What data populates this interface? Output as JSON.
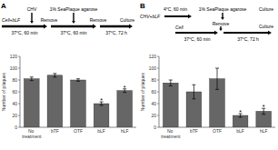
{
  "chart_data": [
    {
      "type": "bar",
      "title": "A",
      "categories": [
        "No treatment",
        "bTF",
        "OTF",
        "bLF",
        "hLF"
      ],
      "values": [
        82,
        88,
        80,
        40,
        62
      ],
      "errors": [
        3,
        3,
        2,
        3,
        3
      ],
      "ylabel": "Number of plaques",
      "ylim": [
        0,
        120
      ],
      "yticks": [
        0,
        20,
        40,
        60,
        80,
        100,
        120
      ],
      "color": "#666666",
      "grid": false,
      "annotations": [
        {
          "text": "Cell+bLF"
        },
        {
          "text": "CHV"
        },
        {
          "text": "Remove"
        },
        {
          "text": "37°C, 60 min"
        },
        {
          "text": "1% SeaPlaque agarose"
        },
        {
          "text": "Remove"
        },
        {
          "text": "37°C, 60 min"
        },
        {
          "text": "Culture"
        },
        {
          "text": "37°C, 72 h"
        },
        {
          "text": "*",
          "category": "bLF"
        },
        {
          "text": "*",
          "category": "hLF"
        }
      ]
    },
    {
      "type": "bar",
      "title": "B",
      "categories": [
        "No treatment",
        "bTF",
        "OTF",
        "bLF",
        "hLF"
      ],
      "values": [
        75,
        60,
        82,
        20,
        27
      ],
      "errors": [
        5,
        12,
        18,
        3,
        5
      ],
      "ylabel": "Number of plaques",
      "ylim": [
        0,
        120
      ],
      "yticks": [
        0,
        20,
        40,
        60,
        80,
        100,
        120
      ],
      "color": "#666666",
      "grid": false,
      "annotations": [
        {
          "text": "CHV+bLF"
        },
        {
          "text": "4°C, 60 min"
        },
        {
          "text": "1% SeaPlaque agarose"
        },
        {
          "text": "Culture"
        },
        {
          "text": "Cell"
        },
        {
          "text": "Remove"
        },
        {
          "text": "37°C, 60 min"
        },
        {
          "text": "Culture"
        },
        {
          "text": "37°C, 72 h"
        },
        {
          "text": "*",
          "category": "bLF"
        },
        {
          "text": "*",
          "category": "hLF"
        }
      ]
    }
  ]
}
